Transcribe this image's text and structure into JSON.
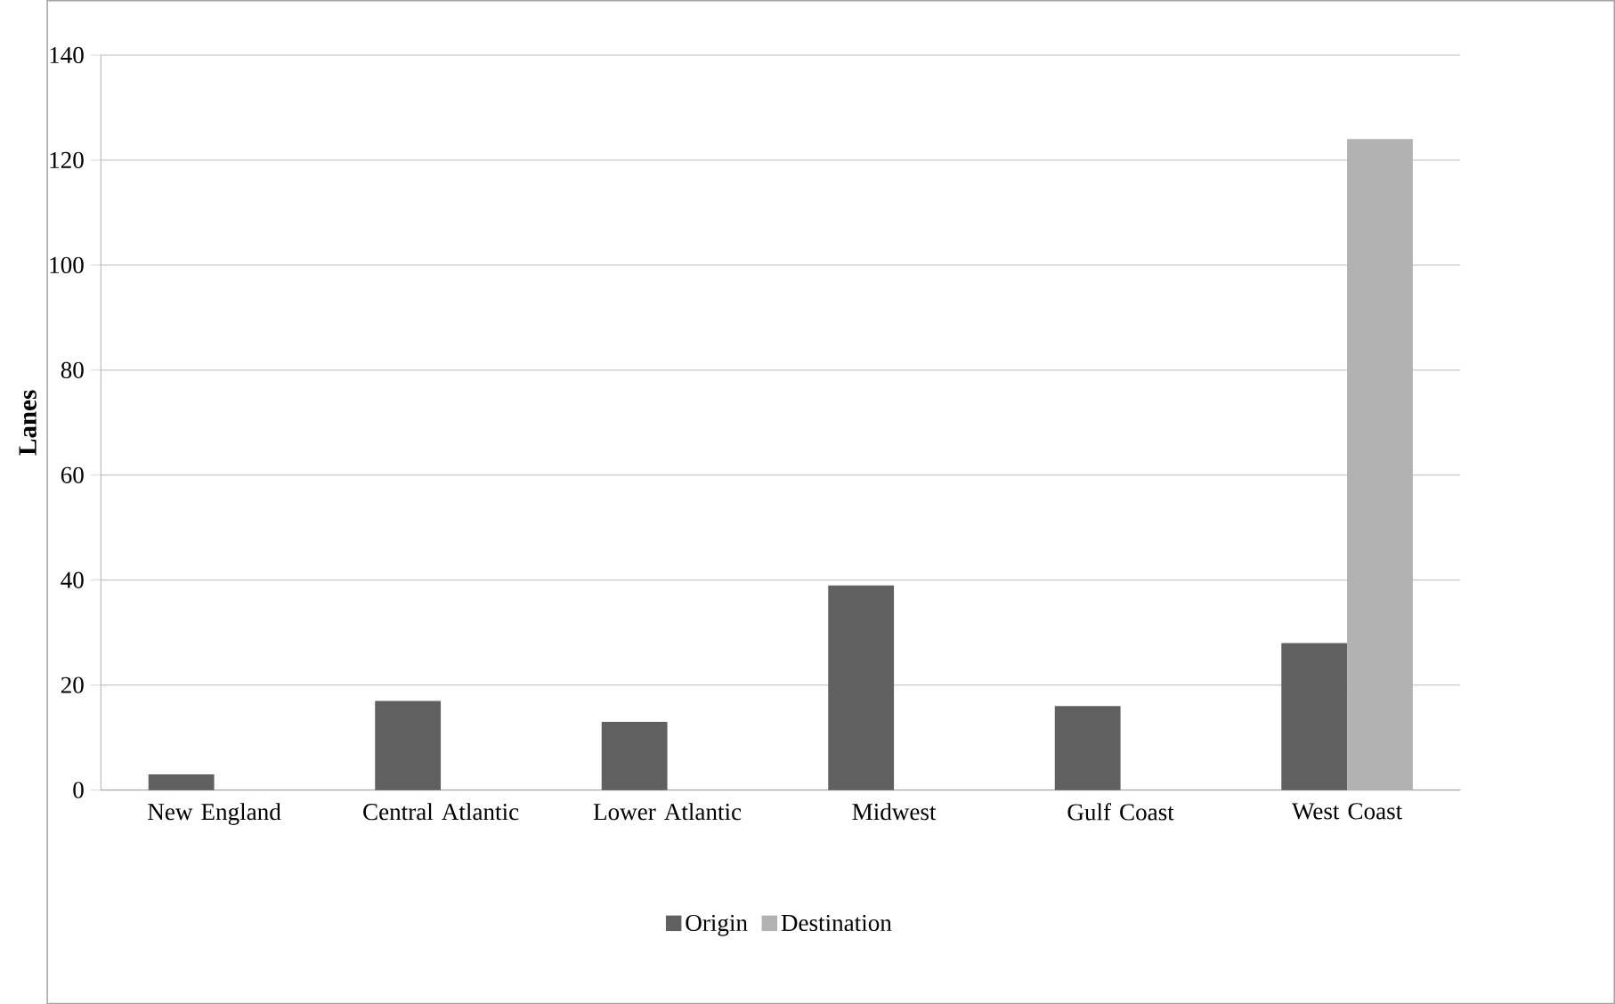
{
  "chart_data": {
    "type": "bar",
    "ylabel": "Lanes",
    "categories": [
      "New England",
      "Central Atlantic",
      "Lower Atlantic",
      "Midwest",
      "Gulf Coast",
      "West Coast"
    ],
    "series": [
      {
        "name": "Origin",
        "color": "#606060",
        "values": [
          3,
          17,
          13,
          39,
          16,
          28
        ]
      },
      {
        "name": "Destination",
        "color": "#b2b2b2",
        "values": [
          0,
          0,
          0,
          0,
          0,
          124
        ]
      }
    ],
    "ylim": [
      0,
      140
    ],
    "yticks": [
      0,
      20,
      40,
      60,
      80,
      100,
      120,
      140
    ],
    "grid": "y",
    "legend": "bottom"
  }
}
